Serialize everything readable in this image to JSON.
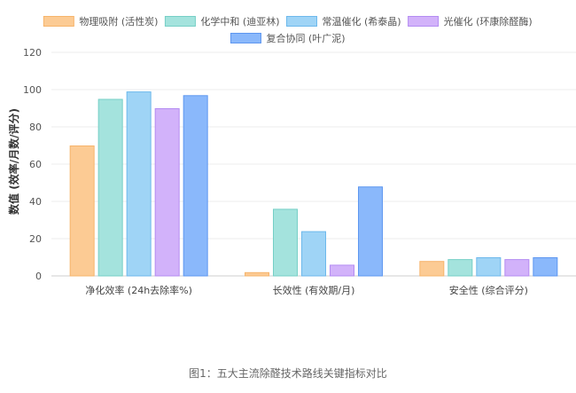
{
  "caption": "图1：五大主流除醛技术路线关键指标对比",
  "chart_data": {
    "type": "bar",
    "title": "",
    "xlabel": "",
    "ylabel": "数值 (效率/月数/评分)",
    "ylim": [
      0,
      120
    ],
    "yticks": [
      0,
      20,
      40,
      60,
      80,
      100,
      120
    ],
    "grid": true,
    "legend_position": "top",
    "categories": [
      "净化效率 (24h去除率%)",
      "长效性 (有效期/月)",
      "安全性 (综合评分)"
    ],
    "series": [
      {
        "name": "物理吸附 (活性炭)",
        "values": [
          70,
          2,
          8
        ],
        "color": "#FCCB94",
        "stroke": "#F6B46B"
      },
      {
        "name": "化学中和 (迪亚林)",
        "values": [
          95,
          36,
          9
        ],
        "color": "#A4E3DD",
        "stroke": "#76CFC6"
      },
      {
        "name": "常温催化 (希泰晶)",
        "values": [
          99,
          24,
          10
        ],
        "color": "#9FD4F6",
        "stroke": "#6DB9EC"
      },
      {
        "name": "光催化 (环康除醛酶)",
        "values": [
          90,
          6,
          9
        ],
        "color": "#D2B2FA",
        "stroke": "#B48CF2"
      },
      {
        "name": "复合协同 (叶广泥)",
        "values": [
          97,
          48,
          10
        ],
        "color": "#8AB8FB",
        "stroke": "#5E97F0"
      }
    ]
  }
}
